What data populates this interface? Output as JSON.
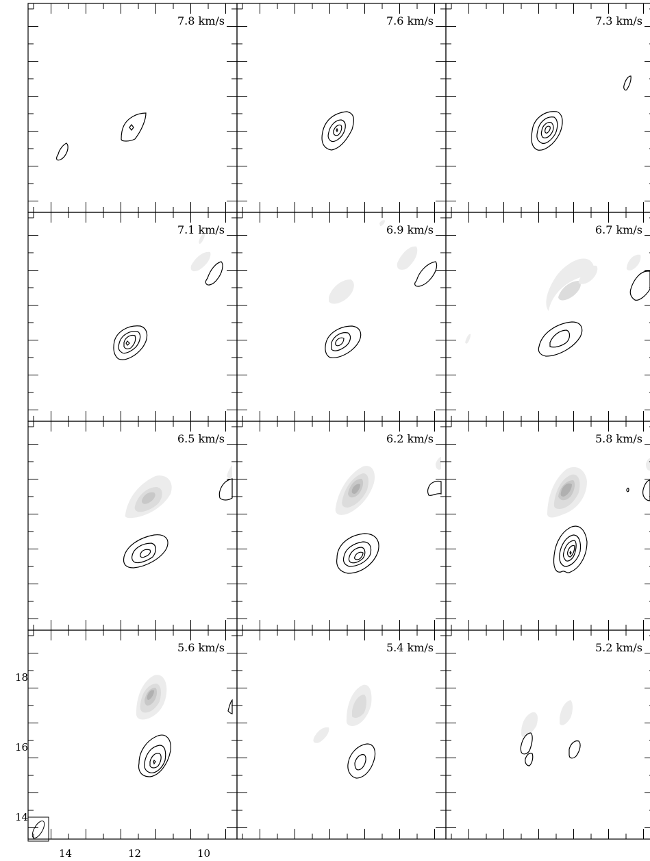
{
  "panels": [
    {
      "velocity": "7.8 km/s"
    },
    {
      "velocity": "7.6 km/s"
    },
    {
      "velocity": "7.3 km/s"
    },
    {
      "velocity": "7.1 km/s"
    },
    {
      "velocity": "6.9 km/s"
    },
    {
      "velocity": "6.7 km/s"
    },
    {
      "velocity": "6.5 km/s"
    },
    {
      "velocity": "6.2 km/s"
    },
    {
      "velocity": "5.8 km/s"
    },
    {
      "velocity": "5.6 km/s"
    },
    {
      "velocity": "5.4 km/s"
    },
    {
      "velocity": "5.2 km/s"
    }
  ],
  "axes": {
    "x_ticks": [
      "14",
      "12",
      "10"
    ],
    "y_ticks": [
      "18",
      "16",
      "14"
    ]
  }
}
